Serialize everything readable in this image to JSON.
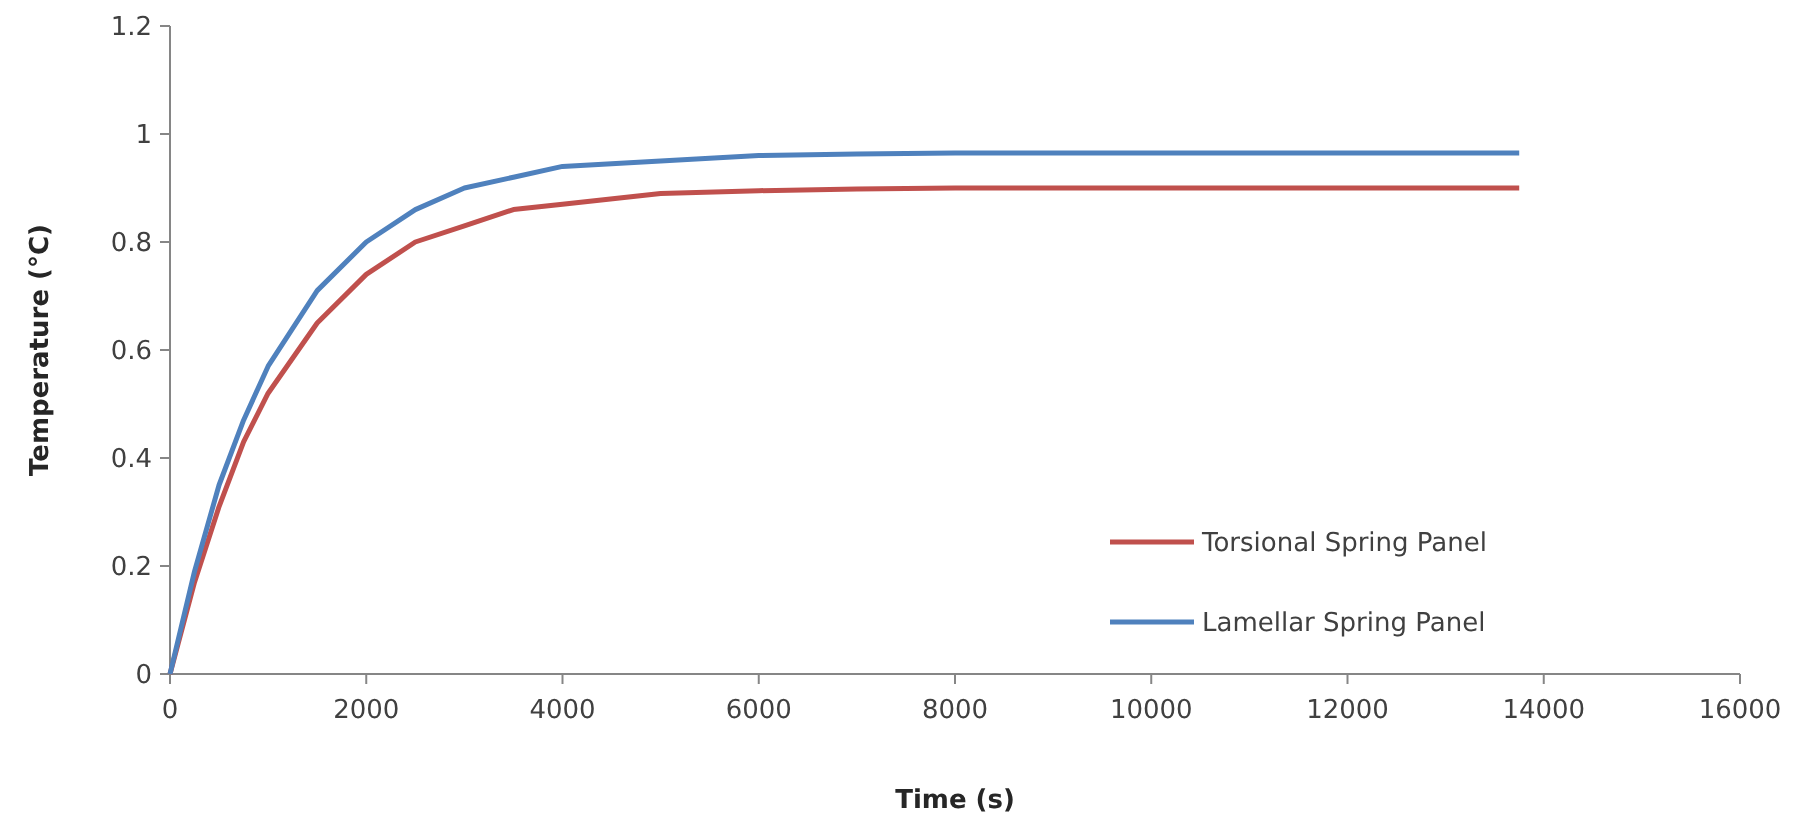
{
  "chart_data": {
    "type": "line",
    "xlabel": "Time (s)",
    "ylabel": "Temperature (°C)",
    "xlim": [
      0,
      16000
    ],
    "xticks": [
      0,
      2000,
      4000,
      6000,
      8000,
      10000,
      12000,
      14000,
      16000
    ],
    "ylim": [
      0,
      1.2
    ],
    "yticks": [
      0,
      0.2,
      0.4,
      0.6,
      0.8,
      1,
      1.2
    ],
    "grid": false,
    "legend": "bottom right",
    "marker": "none",
    "line_style": "solid",
    "x": [
      0,
      250,
      500,
      750,
      1000,
      1500,
      2000,
      2500,
      3000,
      3500,
      4000,
      5000,
      6000,
      7000,
      8000,
      10000,
      12000,
      13750
    ],
    "series": [
      {
        "name": "Torsional Spring Panel",
        "color": "#c0504d",
        "values": [
          0,
          0.17,
          0.31,
          0.43,
          0.52,
          0.65,
          0.74,
          0.8,
          0.83,
          0.86,
          0.87,
          0.89,
          0.895,
          0.898,
          0.9,
          0.9,
          0.9,
          0.9
        ]
      },
      {
        "name": "Lamellar Spring Panel",
        "color": "#4f81bd",
        "values": [
          0,
          0.19,
          0.35,
          0.47,
          0.57,
          0.71,
          0.8,
          0.86,
          0.9,
          0.92,
          0.94,
          0.95,
          0.96,
          0.963,
          0.965,
          0.965,
          0.965,
          0.965
        ]
      }
    ]
  }
}
